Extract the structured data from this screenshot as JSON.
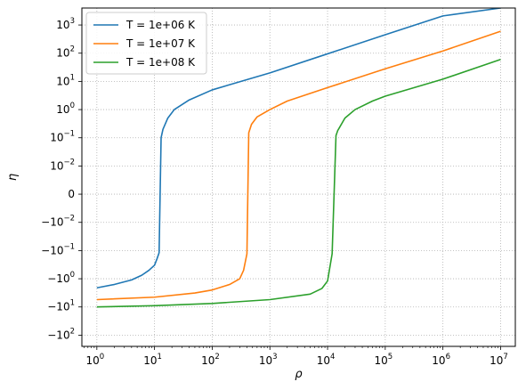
{
  "chart_data": {
    "type": "line",
    "title": "",
    "xlabel": "ρ",
    "ylabel": "η",
    "xscale": "log",
    "yscale": "symlog",
    "xlim": [
      0.55,
      18000000
    ],
    "ylim": [
      -250,
      4000
    ],
    "grid": true,
    "grid_style": "dotted",
    "legend_position": "top-left",
    "x_ticks": [
      {
        "value": 1,
        "base": "10",
        "exp": "0"
      },
      {
        "value": 10,
        "base": "10",
        "exp": "1"
      },
      {
        "value": 100,
        "base": "10",
        "exp": "2"
      },
      {
        "value": 1000,
        "base": "10",
        "exp": "3"
      },
      {
        "value": 10000,
        "base": "10",
        "exp": "4"
      },
      {
        "value": 100000,
        "base": "10",
        "exp": "5"
      },
      {
        "value": 1000000,
        "base": "10",
        "exp": "6"
      },
      {
        "value": 10000000,
        "base": "10",
        "exp": "7"
      }
    ],
    "y_ticks": [
      {
        "value": 1000,
        "base": "10",
        "exp": "3"
      },
      {
        "value": 100,
        "base": "10",
        "exp": "2"
      },
      {
        "value": 10,
        "base": "10",
        "exp": "1"
      },
      {
        "value": 1,
        "base": "10",
        "exp": "0"
      },
      {
        "value": 0.1,
        "base": "10",
        "exp": "−1"
      },
      {
        "value": 0.01,
        "base": "10",
        "exp": "−2"
      },
      {
        "value": 0,
        "base": "0",
        "exp": ""
      },
      {
        "value": -0.01,
        "base": "−10",
        "exp": "−2"
      },
      {
        "value": -0.1,
        "base": "−10",
        "exp": "−1"
      },
      {
        "value": -1,
        "base": "−10",
        "exp": "0"
      },
      {
        "value": -10,
        "base": "−10",
        "exp": "1"
      },
      {
        "value": -100,
        "base": "−10",
        "exp": "2"
      }
    ],
    "series": [
      {
        "name": "T = 1e+06 K",
        "color": "#1f77b4",
        "points": [
          [
            1,
            -2.1
          ],
          [
            2,
            -1.6
          ],
          [
            4,
            -1.1
          ],
          [
            6,
            -0.75
          ],
          [
            8,
            -0.5
          ],
          [
            10,
            -0.33
          ],
          [
            11,
            -0.2
          ],
          [
            12,
            -0.12
          ],
          [
            13,
            0.1
          ],
          [
            14,
            0.2
          ],
          [
            17,
            0.5
          ],
          [
            22,
            1.0
          ],
          [
            40,
            2.2
          ],
          [
            100,
            5
          ],
          [
            1000,
            20
          ],
          [
            10000,
            95
          ],
          [
            100000,
            450
          ],
          [
            1000000,
            2100
          ],
          [
            10000000,
            4000
          ]
        ]
      },
      {
        "name": "T = 1e+07 K",
        "color": "#ff7f0e",
        "points": [
          [
            1,
            -5.5
          ],
          [
            10,
            -4.5
          ],
          [
            50,
            -3.2
          ],
          [
            100,
            -2.5
          ],
          [
            200,
            -1.6
          ],
          [
            300,
            -1.0
          ],
          [
            350,
            -0.5
          ],
          [
            400,
            -0.13
          ],
          [
            430,
            0.15
          ],
          [
            480,
            0.3
          ],
          [
            600,
            0.55
          ],
          [
            1000,
            1.0
          ],
          [
            2000,
            2.0
          ],
          [
            10000,
            6
          ],
          [
            100000,
            28
          ],
          [
            1000000,
            120
          ],
          [
            10000000,
            600
          ]
        ]
      },
      {
        "name": "T = 1e+08 K",
        "color": "#2ca02c",
        "points": [
          [
            1,
            -10
          ],
          [
            10,
            -9
          ],
          [
            100,
            -7.5
          ],
          [
            1000,
            -5.5
          ],
          [
            5000,
            -3.5
          ],
          [
            8000,
            -2.2
          ],
          [
            10000,
            -1.2
          ],
          [
            12000,
            -0.13
          ],
          [
            14000,
            0.12
          ],
          [
            15000,
            0.18
          ],
          [
            20000,
            0.5
          ],
          [
            30000,
            1.0
          ],
          [
            60000,
            2.0
          ],
          [
            100000,
            3
          ],
          [
            1000000,
            12
          ],
          [
            10000000,
            60
          ]
        ]
      }
    ]
  }
}
